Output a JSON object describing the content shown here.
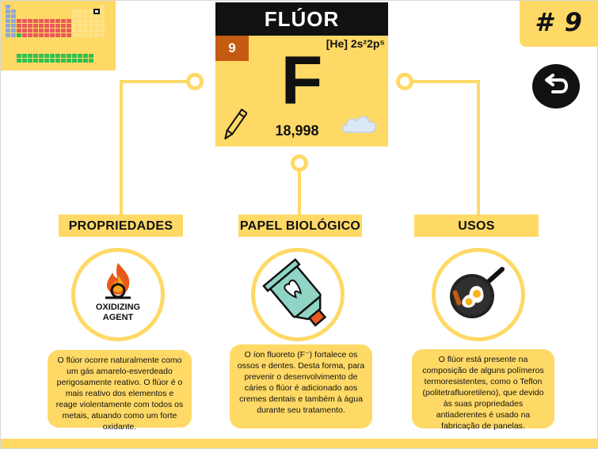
{
  "element": {
    "name": "FLÚOR",
    "number_badge": "# 9",
    "atomic_number": "9",
    "electron_config": "[He] 2s²2p⁵",
    "symbol": "F",
    "atomic_mass": "18,998"
  },
  "sections": [
    {
      "label": "PROPRIEDADES",
      "icon_caption_1": "OXIDIZING",
      "icon_caption_2": "AGENT",
      "description": "O flúor ocorre naturalmente como um gás amarelo-esverdeado perigosamente reativo. O flúor é o mais reativo dos elementos e reage violentamente com todos os metais, atuando como um forte oxidante."
    },
    {
      "label": "PAPEL BIOLÓGICO",
      "description": "O íon fluoreto (F⁻) fortalece os ossos e dentes. Desta forma, para prevenir o desenvolvimento de cáries o flúor é adicionado aos cremes dentais e também à água durante seu tratamento."
    },
    {
      "label": "USOS",
      "description": "O flúor está presente na composição de alguns polímeros termoresistentes, como o Teflon (politetrafluoretileno), que devido às suas propriedades antiaderentes é usado na fabricação de panelas."
    }
  ],
  "icons": {
    "periodic_table": "periodic-table-icon",
    "back": "back-arrow-icon",
    "pencil": "pencil-icon",
    "cloud": "gas-cloud-icon",
    "oxidizer": "oxidizing-agent-icon",
    "toothpaste": "toothpaste-icon",
    "pan": "frying-pan-icon"
  },
  "colors": {
    "accent": "#ffd966",
    "dark": "#111111",
    "atomic_number_bg": "#c55a11"
  }
}
